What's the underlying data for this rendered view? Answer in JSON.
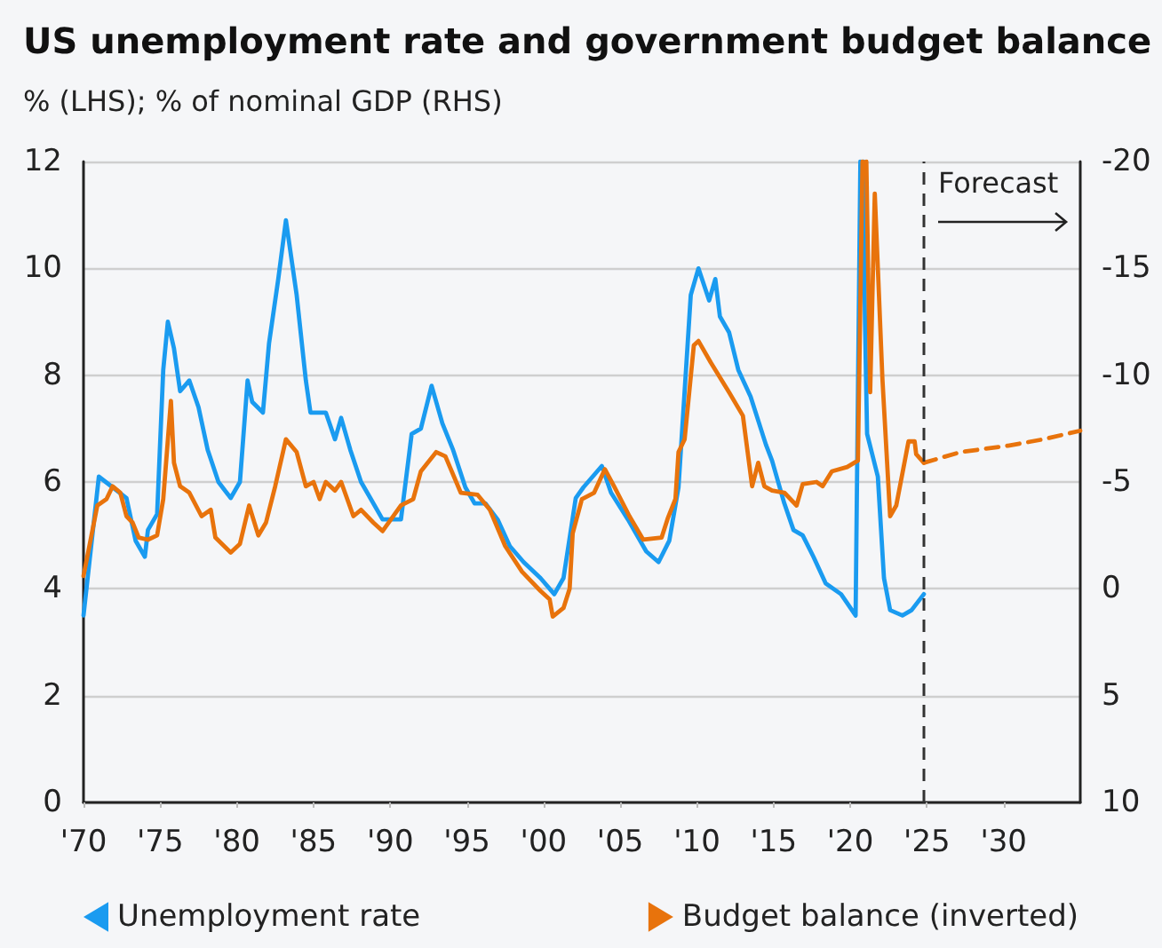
{
  "chart_data": {
    "type": "line",
    "title": "US unemployment rate and government budget balance",
    "subtitle": "% (LHS); % of nominal GDP (RHS)",
    "xlim": [
      1970,
      2035
    ],
    "xticks": [
      {
        "value": 1970,
        "label": "'70"
      },
      {
        "value": 1975,
        "label": "'75"
      },
      {
        "value": 1980,
        "label": "'80"
      },
      {
        "value": 1985,
        "label": "'85"
      },
      {
        "value": 1990,
        "label": "'90"
      },
      {
        "value": 1995,
        "label": "'95"
      },
      {
        "value": 2000,
        "label": "'00"
      },
      {
        "value": 2005,
        "label": "'05"
      },
      {
        "value": 2010,
        "label": "'10"
      },
      {
        "value": 2015,
        "label": "'15"
      },
      {
        "value": 2020,
        "label": "'20"
      },
      {
        "value": 2025,
        "label": "'25"
      },
      {
        "value": 2030,
        "label": "'30"
      }
    ],
    "ylim": [
      0,
      12
    ],
    "yticks": [
      0,
      2,
      4,
      6,
      8,
      10,
      12
    ],
    "y2lim": [
      10,
      -20
    ],
    "y2ticks": [
      -20,
      -15,
      -10,
      -5,
      0,
      5,
      10
    ],
    "grid": "y",
    "legend": "bottom",
    "ref_lines": [
      {
        "axis": "x",
        "value": 2024.8,
        "label": "Forecast",
        "color": "#333333",
        "line_style": "dashed"
      }
    ],
    "series": [
      {
        "name": "Unemployment rate",
        "color": "#1a9bf0",
        "axis": "y",
        "line_style": "solid",
        "x": [
          1970.0,
          1971.0,
          1971.9,
          1972.8,
          1973.4,
          1974.0,
          1974.2,
          1974.8,
          1975.2,
          1975.5,
          1975.9,
          1976.3,
          1976.9,
          1977.5,
          1978.1,
          1978.8,
          1979.6,
          1980.2,
          1980.7,
          1981.0,
          1981.7,
          1982.1,
          1982.7,
          1983.2,
          1983.9,
          1984.5,
          1984.8,
          1985.8,
          1986.4,
          1986.8,
          1987.4,
          1988.1,
          1988.7,
          1989.5,
          1990.7,
          1991.4,
          1992.0,
          1992.7,
          1993.4,
          1994.1,
          1994.9,
          1995.5,
          1996.2,
          1997.0,
          1997.8,
          1998.7,
          1999.8,
          2000.7,
          2001.3,
          2002.1,
          2002.6,
          2003.8,
          2004.4,
          2005.5,
          2006.7,
          2007.5,
          2008.2,
          2008.8,
          2009.6,
          2010.1,
          2010.8,
          2011.2,
          2011.5,
          2012.1,
          2012.7,
          2013.5,
          2014.5,
          2014.9,
          2015.7,
          2016.3,
          2016.9,
          2017.6,
          2018.4,
          2019.4,
          2020.35,
          2020.66,
          2020.75,
          2020.85,
          2020.96,
          2021.1,
          2021.8,
          2022.2,
          2022.6,
          2023.4,
          2024.0,
          2024.8
        ],
        "values": [
          3.5,
          6.1,
          5.9,
          5.7,
          4.9,
          4.6,
          5.1,
          5.4,
          8.1,
          9.0,
          8.5,
          7.7,
          7.9,
          7.4,
          6.6,
          6.0,
          5.7,
          6.0,
          7.9,
          7.5,
          7.3,
          8.6,
          9.8,
          10.9,
          9.5,
          7.9,
          7.3,
          7.3,
          6.8,
          7.2,
          6.6,
          6.0,
          5.7,
          5.3,
          5.3,
          6.9,
          7.0,
          7.8,
          7.1,
          6.6,
          5.9,
          5.6,
          5.6,
          5.3,
          4.8,
          4.5,
          4.2,
          3.9,
          4.2,
          5.7,
          5.9,
          6.3,
          5.8,
          5.3,
          4.7,
          4.5,
          4.9,
          5.9,
          9.5,
          10.0,
          9.4,
          9.8,
          9.1,
          8.8,
          8.1,
          7.6,
          6.7,
          6.4,
          5.6,
          5.1,
          5.0,
          4.6,
          4.1,
          3.9,
          3.5,
          12,
          null,
          12,
          9.0,
          6.9,
          6.1,
          4.2,
          3.6,
          3.5,
          3.6,
          3.9
        ]
      },
      {
        "name": "Budget balance (inverted)",
        "color": "#e8730c",
        "axis": "y2",
        "line_style": "solid",
        "x": [
          1970.0,
          1970.9,
          1971.5,
          1971.9,
          1972.4,
          1972.8,
          1973.2,
          1973.6,
          1974.2,
          1974.8,
          1975.2,
          1975.7,
          1975.9,
          1976.3,
          1976.9,
          1977.7,
          1978.3,
          1978.6,
          1979.6,
          1980.2,
          1980.8,
          1981.4,
          1981.9,
          1982.5,
          1983.2,
          1983.9,
          1984.5,
          1985.0,
          1985.4,
          1985.8,
          1986.4,
          1986.8,
          1987.6,
          1988.1,
          1988.9,
          1989.5,
          1990.7,
          1991.5,
          1992.0,
          1993.0,
          1993.6,
          1994.6,
          1995.7,
          1996.5,
          1997.5,
          1998.6,
          1999.8,
          2000.4,
          2000.6,
          2001.3,
          2001.7,
          2001.9,
          2002.5,
          2003.3,
          2004.0,
          2004.6,
          2005.6,
          2006.5,
          2007.7,
          2008.1,
          2008.6,
          2008.8,
          2009.2,
          2009.8,
          2010.1,
          2010.9,
          2012.1,
          2013.0,
          2013.6,
          2014.0,
          2014.4,
          2014.9,
          2015.7,
          2016.5,
          2016.9,
          2017.8,
          2018.2,
          2018.8,
          2019.8,
          2020.5,
          2020.8,
          2020.9,
          2021.05,
          2021.3,
          2021.6,
          2022.1,
          2022.6,
          2023.0,
          2023.8,
          2024.2,
          2024.3,
          2024.8
        ],
        "values": [
          -0.6,
          -3.9,
          -4.2,
          -4.8,
          -4.5,
          -3.4,
          -3.1,
          -2.4,
          -2.3,
          -2.5,
          -4.2,
          -8.8,
          -5.9,
          -4.8,
          -4.5,
          -3.4,
          -3.7,
          -2.4,
          -1.7,
          -2.1,
          -3.9,
          -2.5,
          -3.1,
          -4.8,
          -7.0,
          -6.4,
          -4.8,
          -5.0,
          -4.2,
          -5.0,
          -4.6,
          -5.0,
          -3.4,
          -3.7,
          -3.1,
          -2.7,
          -3.9,
          -4.2,
          -5.5,
          -6.4,
          -6.2,
          -4.5,
          -4.4,
          -3.7,
          -2.0,
          -0.8,
          0.1,
          0.5,
          1.3,
          0.9,
          0.0,
          -2.6,
          -4.2,
          -4.5,
          -5.6,
          -4.8,
          -3.4,
          -2.3,
          -2.4,
          -3.3,
          -4.2,
          -6.4,
          -7.0,
          -11.4,
          -11.6,
          -10.6,
          -9.2,
          -8.1,
          -4.8,
          -5.9,
          -4.8,
          -4.6,
          -4.5,
          -3.9,
          -4.9,
          -5.0,
          -4.8,
          -5.5,
          -5.7,
          -6.0,
          -20,
          null,
          -20,
          -9.2,
          -18.5,
          -9.8,
          -3.4,
          -3.9,
          -6.9,
          -6.9,
          -6.3,
          -5.9
        ]
      },
      {
        "color": "#e8730c",
        "axis": "y2",
        "line_style": "dashed",
        "x": [
          2024.8,
          2027.2,
          2030.3,
          2032.6,
          2035.0
        ],
        "values": [
          -5.9,
          -6.4,
          -6.7,
          -7.0,
          -7.4
        ]
      }
    ]
  }
}
